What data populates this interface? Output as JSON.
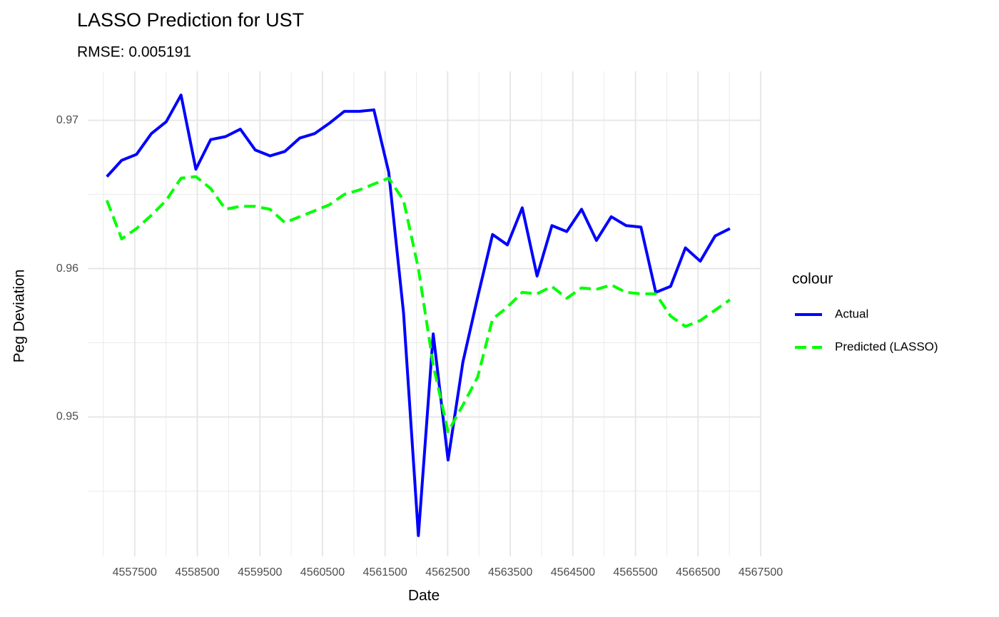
{
  "chart_data": {
    "type": "line",
    "title": "LASSO Prediction for UST",
    "subtitle": "RMSE: 0.005191",
    "x_label": "Date",
    "y_label": "Peg Deviation",
    "legend_title": "colour",
    "legend_position": "right",
    "grid": true,
    "x": [
      4557055,
      4557292,
      4557529,
      4557766,
      4558003,
      4558240,
      4558477,
      4558714,
      4558951,
      4559188,
      4559425,
      4559662,
      4559899,
      4560136,
      4560373,
      4560610,
      4560847,
      4561084,
      4561321,
      4561558,
      4561795,
      4562032,
      4562269,
      4562506,
      4562743,
      4562980,
      4563217,
      4563454,
      4563691,
      4563928,
      4564165,
      4564402,
      4564639,
      4564876,
      4565113,
      4565350,
      4565587,
      4565824,
      4566061,
      4566298,
      4566535,
      4566772,
      4567009
    ],
    "series": [
      {
        "name": "Actual",
        "color": "#0000ff",
        "linetype": "solid",
        "values": [
          0.9662,
          0.9673,
          0.9677,
          0.9691,
          0.9699,
          0.9717,
          0.9667,
          0.9687,
          0.9689,
          0.9694,
          0.968,
          0.9676,
          0.9679,
          0.9688,
          0.9691,
          0.9698,
          0.9706,
          0.9706,
          0.9707,
          0.9665,
          0.957,
          0.942,
          0.9556,
          0.9471,
          0.9537,
          0.9581,
          0.9623,
          0.9616,
          0.9641,
          0.9595,
          0.9629,
          0.9625,
          0.964,
          0.9619,
          0.9635,
          0.9629,
          0.9628,
          0.9584,
          0.9588,
          0.9614,
          0.9605,
          0.9622,
          0.9627
        ]
      },
      {
        "name": "Predicted (LASSO)",
        "color": "#00ff00",
        "linetype": "dashed",
        "values": [
          0.9646,
          0.962,
          0.9627,
          0.9636,
          0.9646,
          0.9661,
          0.9662,
          0.9654,
          0.964,
          0.9642,
          0.9642,
          0.964,
          0.9631,
          0.9635,
          0.9639,
          0.9643,
          0.965,
          0.9653,
          0.9657,
          0.9661,
          0.9646,
          0.96,
          0.9535,
          0.949,
          0.9508,
          0.9527,
          0.9566,
          0.9574,
          0.9584,
          0.9583,
          0.9588,
          0.958,
          0.9587,
          0.9586,
          0.9589,
          0.9584,
          0.9583,
          0.9583,
          0.9568,
          0.9561,
          0.9565,
          0.9572,
          0.9579
        ]
      }
    ],
    "xlim": [
      4556750,
      4567500
    ],
    "xticks": [
      4557500,
      4558500,
      4559500,
      4560500,
      4561500,
      4562500,
      4563500,
      4564500,
      4565500,
      4566500,
      4567500
    ],
    "ylim": [
      0.9406,
      0.9733
    ],
    "yticks": [
      0.95,
      0.96,
      0.97
    ]
  }
}
